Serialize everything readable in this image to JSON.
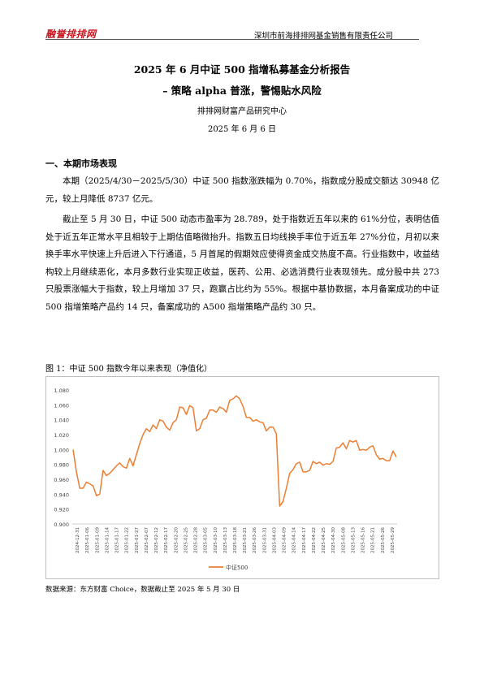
{
  "header": {
    "logo": "融誉排排网",
    "company": "深圳市前海排排网基金销售有限责任公司"
  },
  "title": {
    "line1": "2025 年 6 月中证 500 指增私募基金分析报告",
    "line2": "–  策略 alpha 普涨，警惕贴水风险"
  },
  "org": "排排网财富产品研究中心",
  "date": "2025 年 6 月 6 日",
  "section1": {
    "heading": "一、本期市场表现",
    "para1": "本期（2025/4/30－2025/5/30）中证 500 指数涨跌幅为 0.70%，指数成分股成交额达 30948 亿元，较上月降低 8737 亿元。",
    "para2": "截止至 5 月 30 日，中证 500 动态市盈率为 28.789，处于指数近五年以来的 61%分位，表明估值处于近五年正常水平且相较于上期估值略微抬升。指数五日均线换手率位于近五年 27%分位，月初以来换手率水平快速上升后进入下行通道，5 月首尾的假期效应使得资金成交热度不高。行业指数中，收益结构较上月继续恶化，本月多数行业实现正收益，医药、公用、必选消费行业表现领先。成分股中共 273 只股票涨幅大于指数，较上月增加 37 只，跑赢占比约为 55%。根据中基协数据，本月备案成功的中证 500 指增策略产品约 14 只，备案成功的 A500 指增策略产品约 30 只。"
  },
  "figure": {
    "caption": "图 1：中证 500 指数今年以来表现（净值化）",
    "source": "数据来源：东方财富 Choice，数据截止至 2025 年 5 月 30 日"
  },
  "chart_data": {
    "type": "line",
    "title": "",
    "xlabel": "",
    "ylabel": "",
    "ylim": [
      0.9,
      1.08
    ],
    "yticks": [
      "1.080",
      "1.060",
      "1.040",
      "1.020",
      "1.000",
      "0.980",
      "0.960",
      "0.940",
      "0.920",
      "0.900"
    ],
    "xticks": [
      "2024-12-31",
      "2025-01-06",
      "2025-01-09",
      "2025-01-14",
      "2025-01-17",
      "2025-01-22",
      "2025-01-27",
      "2025-02-07",
      "2025-02-12",
      "2025-02-17",
      "2025-02-20",
      "2025-02-25",
      "2025-02-28",
      "2025-03-05",
      "2025-03-10",
      "2025-03-13",
      "2025-03-18",
      "2025-03-21",
      "2025-03-26",
      "2025-03-31",
      "2025-04-03",
      "2025-04-09",
      "2025-04-14",
      "2025-04-17",
      "2025-04-22",
      "2025-04-25",
      "2025-04-30",
      "2025-05-08",
      "2025-05-13",
      "2025-05-16",
      "2025-05-21",
      "2025-05-26",
      "2025-05-29"
    ],
    "grid": false,
    "legend": "bottom",
    "color": "#ed7d31",
    "series": [
      {
        "name": "中证500",
        "values": [
          1.0,
          0.97,
          0.948,
          0.948,
          0.956,
          0.954,
          0.951,
          0.938,
          0.94,
          0.972,
          0.965,
          0.968,
          0.973,
          0.978,
          0.982,
          0.977,
          0.975,
          0.988,
          0.978,
          0.993,
          1.008,
          1.02,
          1.028,
          1.024,
          1.033,
          1.028,
          1.04,
          1.038,
          1.03,
          1.026,
          1.036,
          1.04,
          1.057,
          1.056,
          1.047,
          1.059,
          1.056,
          1.025,
          1.028,
          1.04,
          1.042,
          1.053,
          1.053,
          1.05,
          1.057,
          1.055,
          1.05,
          1.066,
          1.068,
          1.072,
          1.068,
          1.058,
          1.043,
          1.043,
          1.038,
          1.04,
          1.037,
          1.036,
          1.025,
          1.03,
          1.03,
          1.021,
          0.924,
          0.93,
          0.948,
          0.968,
          0.973,
          0.981,
          0.983,
          0.97,
          0.97,
          0.972,
          0.984,
          0.981,
          0.983,
          0.979,
          0.981,
          0.98,
          0.984,
          1.002,
          1.003,
          1.009,
          1.001,
          1.012,
          1.01,
          1.012,
          0.999,
          1.0,
          0.999,
          1.003,
          1.005,
          0.993,
          0.987,
          0.988,
          0.985,
          0.985,
          0.998,
          0.99
        ]
      }
    ]
  }
}
